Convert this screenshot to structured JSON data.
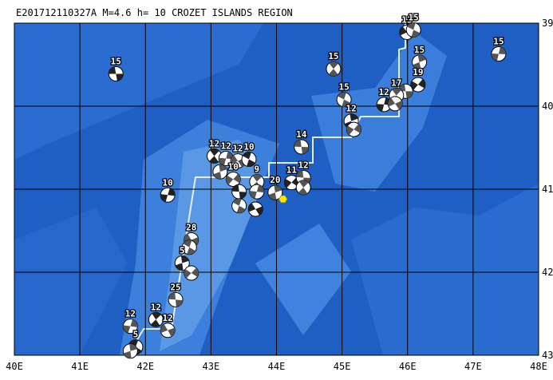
{
  "map": {
    "title": "E201712110327A  M=4.6 h= 10 CROZET ISLANDS REGION",
    "xlim": [
      40,
      48
    ],
    "ylim": [
      -43,
      -39
    ],
    "xticks": [
      {
        "value": 40,
        "label": "40E"
      },
      {
        "value": 41,
        "label": "41E"
      },
      {
        "value": 42,
        "label": "42E"
      },
      {
        "value": 43,
        "label": "43E"
      },
      {
        "value": 44,
        "label": "44E"
      },
      {
        "value": 45,
        "label": "45E"
      },
      {
        "value": 46,
        "label": "46E"
      },
      {
        "value": 47,
        "label": "47E"
      },
      {
        "value": 48,
        "label": "48E"
      }
    ],
    "yticks": [
      {
        "value": -39,
        "label": "39S"
      },
      {
        "value": -40,
        "label": "40S"
      },
      {
        "value": -41,
        "label": "41S"
      },
      {
        "value": -42,
        "label": "42S"
      },
      {
        "value": -43,
        "label": "43S"
      }
    ],
    "epicenter": {
      "lon": 44.1,
      "lat": -41.12
    },
    "events": [
      {
        "lon": 41.55,
        "lat": -39.61,
        "depth": 15
      },
      {
        "lon": 44.87,
        "lat": -39.55,
        "depth": 15
      },
      {
        "lon": 47.39,
        "lat": -39.37,
        "depth": 15
      },
      {
        "lon": 45.99,
        "lat": -39.11,
        "depth": 13
      },
      {
        "lon": 46.09,
        "lat": -39.08,
        "depth": 15
      },
      {
        "lon": 46.18,
        "lat": -39.47,
        "depth": 15
      },
      {
        "lon": 46.16,
        "lat": -39.74,
        "depth": 19
      },
      {
        "lon": 45.97,
        "lat": -39.82,
        "depth": null
      },
      {
        "lon": 45.83,
        "lat": -39.87,
        "depth": 17
      },
      {
        "lon": 45.64,
        "lat": -39.98,
        "depth": 12
      },
      {
        "lon": 45.81,
        "lat": -39.97,
        "depth": null
      },
      {
        "lon": 45.03,
        "lat": -39.92,
        "depth": 15
      },
      {
        "lon": 45.14,
        "lat": -40.18,
        "depth": 12
      },
      {
        "lon": 45.18,
        "lat": -40.28,
        "depth": null
      },
      {
        "lon": 44.38,
        "lat": -40.49,
        "depth": 14
      },
      {
        "lon": 43.05,
        "lat": -40.6,
        "depth": 12
      },
      {
        "lon": 43.23,
        "lat": -40.63,
        "depth": 12
      },
      {
        "lon": 43.41,
        "lat": -40.66,
        "depth": 12
      },
      {
        "lon": 43.58,
        "lat": -40.64,
        "depth": 10
      },
      {
        "lon": 43.14,
        "lat": -40.79,
        "depth": null
      },
      {
        "lon": 43.34,
        "lat": -40.88,
        "depth": 10
      },
      {
        "lon": 43.43,
        "lat": -41.03,
        "depth": null
      },
      {
        "lon": 43.7,
        "lat": -40.91,
        "depth": 9
      },
      {
        "lon": 43.7,
        "lat": -41.03,
        "depth": null
      },
      {
        "lon": 43.68,
        "lat": -41.24,
        "depth": null
      },
      {
        "lon": 43.43,
        "lat": -41.2,
        "depth": null
      },
      {
        "lon": 43.98,
        "lat": -41.04,
        "depth": 20
      },
      {
        "lon": 44.23,
        "lat": -40.92,
        "depth": 11
      },
      {
        "lon": 44.41,
        "lat": -40.86,
        "depth": 12
      },
      {
        "lon": 44.41,
        "lat": -40.98,
        "depth": null
      },
      {
        "lon": 42.34,
        "lat": -41.07,
        "depth": 10
      },
      {
        "lon": 42.7,
        "lat": -41.61,
        "depth": 28
      },
      {
        "lon": 42.67,
        "lat": -41.7,
        "depth": null
      },
      {
        "lon": 42.56,
        "lat": -41.89,
        "depth": 5
      },
      {
        "lon": 42.7,
        "lat": -42.01,
        "depth": null
      },
      {
        "lon": 42.46,
        "lat": -42.33,
        "depth": 25
      },
      {
        "lon": 42.16,
        "lat": -42.57,
        "depth": 12
      },
      {
        "lon": 41.77,
        "lat": -42.65,
        "depth": 12
      },
      {
        "lon": 42.34,
        "lat": -42.7,
        "depth": 12
      },
      {
        "lon": 41.85,
        "lat": -42.9,
        "depth": 5
      },
      {
        "lon": 41.77,
        "lat": -42.95,
        "depth": null
      }
    ]
  }
}
